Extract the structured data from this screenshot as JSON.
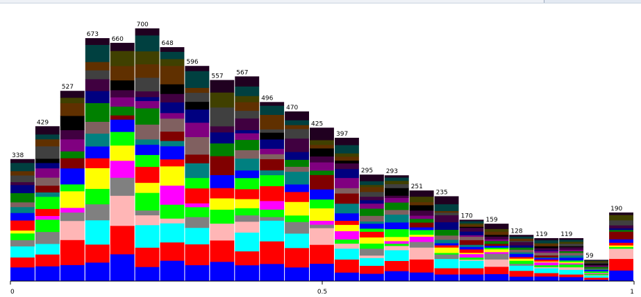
{
  "chart_data": {
    "type": "bar",
    "stacked": true,
    "x_range": [
      0,
      1
    ],
    "x_ticks": [
      {
        "value": 0,
        "label": "0"
      },
      {
        "value": 0.5,
        "label": "0.5"
      },
      {
        "value": 1,
        "label": "1"
      }
    ],
    "y_range": [
      0,
      700
    ],
    "bins": [
      0.02,
      0.06,
      0.1,
      0.14,
      0.18,
      0.22,
      0.26,
      0.3,
      0.34,
      0.38,
      0.42,
      0.46,
      0.5,
      0.54,
      0.58,
      0.62,
      0.66,
      0.7,
      0.74,
      0.78,
      0.82,
      0.86,
      0.9,
      0.94,
      0.98
    ],
    "totals": [
      338,
      429,
      527,
      673,
      660,
      700,
      648,
      596,
      557,
      567,
      496,
      470,
      425,
      397,
      295,
      293,
      251,
      235,
      170,
      159,
      128,
      119,
      119,
      59,
      190
    ],
    "segment_colors": [
      "#0000ff",
      "#ff0000",
      "#00ffff",
      "#ffb6b6",
      "#808080",
      "#00ff00",
      "#ff00ff",
      "#ffff00",
      "#ff0000",
      "#00ff00",
      "#0000ff",
      "#008080",
      "#800000",
      "#806060",
      "#008000",
      "#800080",
      "#000080",
      "#400040",
      "#000000",
      "#404040",
      "#603000",
      "#404000",
      "#004040",
      "#200020",
      "#401010"
    ],
    "legend": "none",
    "grid": false
  }
}
